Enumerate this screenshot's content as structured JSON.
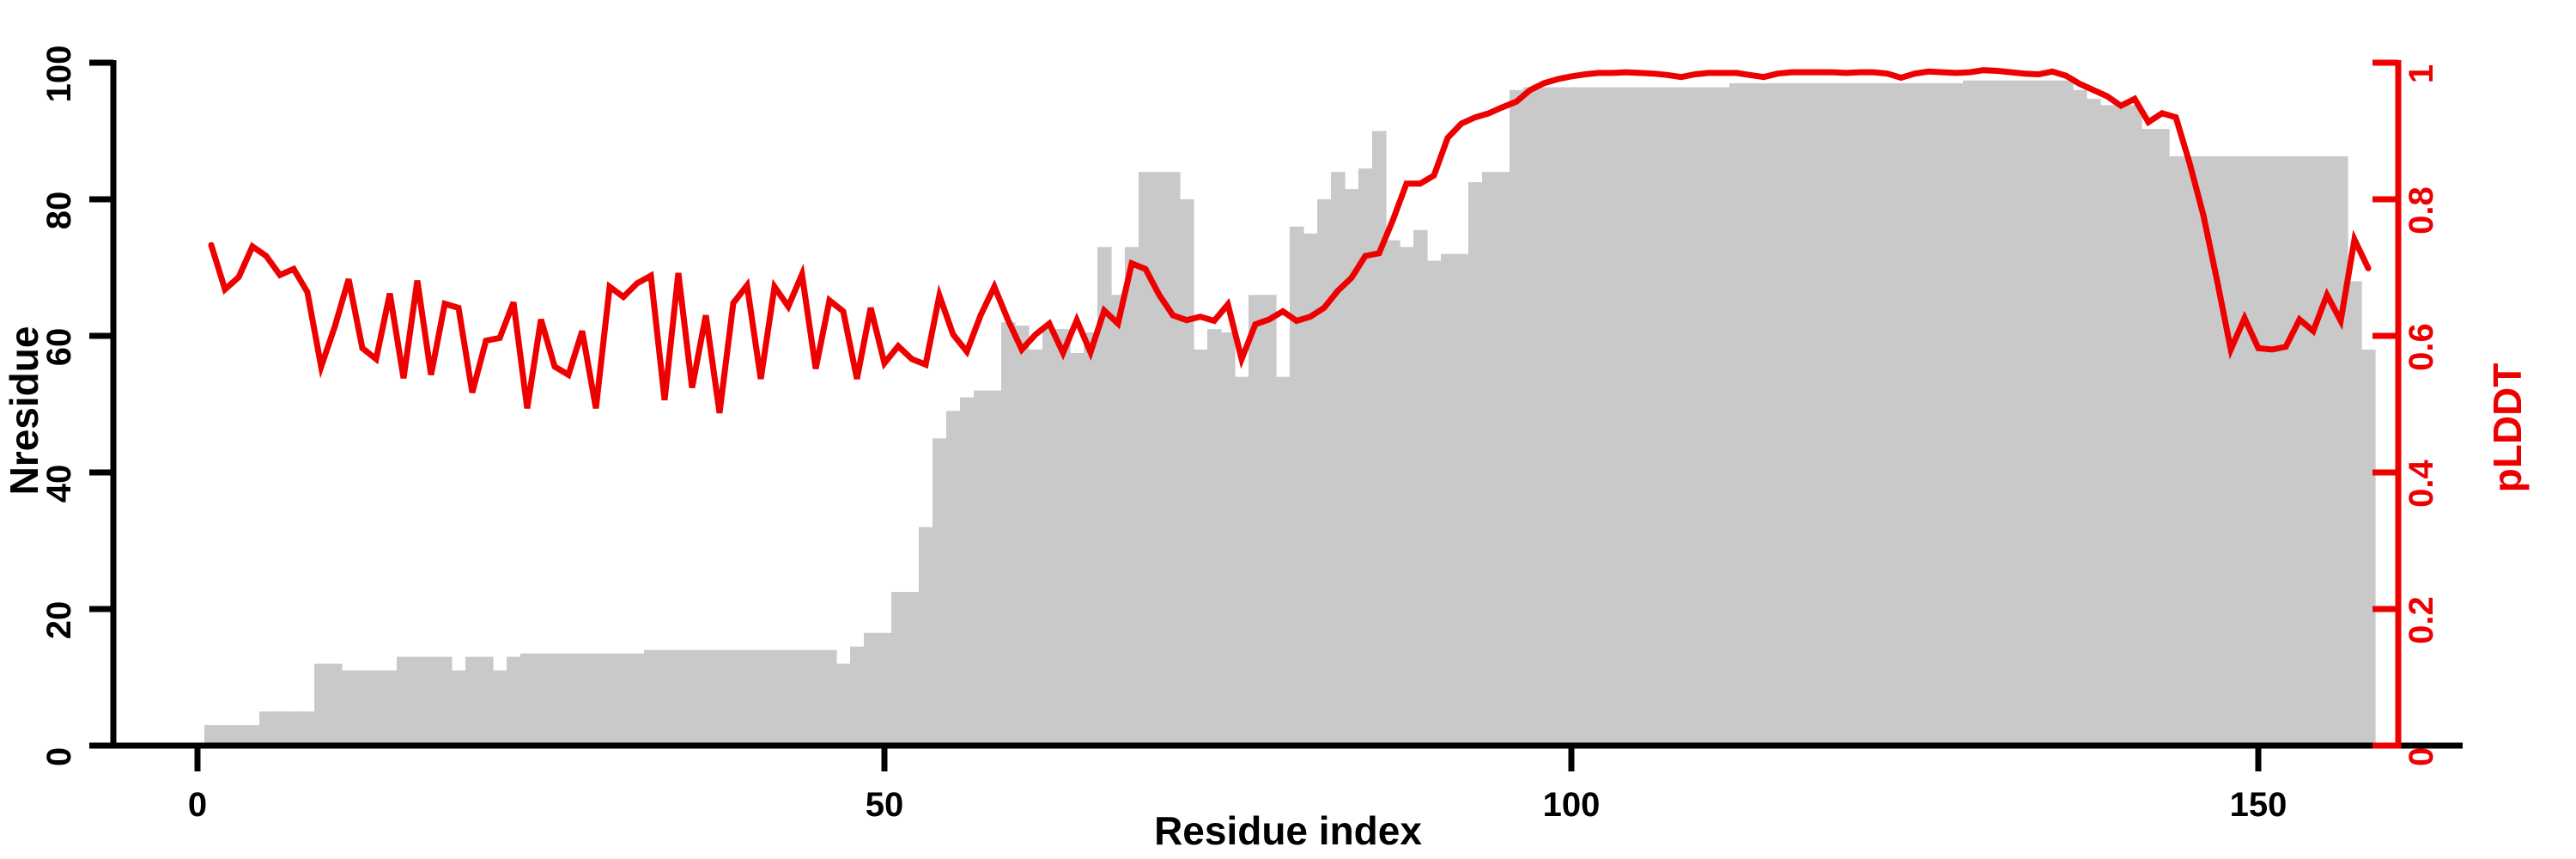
{
  "chart_data": {
    "type": "bar-line-dual-axis",
    "title": "",
    "xlabel": "Residue index",
    "ylabel_left": "Nresidue",
    "ylabel_right": "pLDDT",
    "x_ticks": [
      0,
      50,
      100,
      150
    ],
    "y_left_ticks": [
      0,
      20,
      40,
      60,
      80,
      100
    ],
    "y_right_ticks": [
      0,
      0.2,
      0.4,
      0.6,
      0.8,
      1
    ],
    "y_right_tick_labels": [
      "0",
      "0.2",
      "0.4",
      "0.6",
      "0.8",
      "1"
    ],
    "x_range": [
      0,
      160.6
    ],
    "y_left_range": [
      0,
      100
    ],
    "y_right_range": [
      0,
      1
    ],
    "grid": "off",
    "legend": "none",
    "colors": {
      "bars": "#c9c9c9",
      "line": "#ee0000",
      "left_axis": "#000000",
      "bottom_axis": "#000000",
      "right_axis": "#ee0000"
    },
    "series": [
      {
        "name": "Nresidue",
        "type": "bar",
        "axis": "left",
        "x_start": 1,
        "values": [
          3,
          3,
          3,
          3,
          5,
          5,
          5,
          5,
          12,
          12,
          11,
          11,
          11,
          11,
          13,
          13,
          13,
          13,
          11,
          13,
          13,
          11,
          13,
          13.5,
          13.5,
          13.5,
          13.5,
          13.5,
          13.5,
          13.5,
          13.5,
          13.5,
          14,
          14,
          14,
          14,
          14,
          14,
          14,
          14,
          14,
          14,
          14,
          14,
          14,
          14,
          12,
          14.5,
          16.5,
          16.5,
          22.5,
          22.5,
          32,
          45,
          49,
          51,
          52,
          52,
          62,
          61.5,
          58,
          61,
          61,
          57.5,
          60.5,
          73,
          66,
          73,
          84,
          84,
          84,
          80,
          58,
          61,
          60.5,
          54,
          66,
          66,
          54,
          76,
          75,
          80,
          84,
          81.5,
          84.5,
          90,
          74,
          73,
          75.5,
          71,
          72,
          72,
          82.5,
          84,
          84,
          96,
          96.4,
          96.4,
          96.4,
          96.4,
          96.4,
          96.4,
          96.4,
          96.4,
          96.4,
          96.4,
          96.4,
          96.4,
          96.4,
          96.4,
          96.4,
          97,
          97,
          97,
          97,
          97,
          97,
          97,
          97,
          97,
          97,
          97,
          97,
          97,
          97,
          97,
          97,
          97,
          97.4,
          97.4,
          97.4,
          97.4,
          97.4,
          97.4,
          97.4,
          97.4,
          96,
          94.7,
          93.8,
          93.8,
          93.8,
          90.3,
          90.3,
          86.3,
          86.3,
          86.3,
          86.3,
          86.3,
          86.3,
          86.3,
          86.3,
          86.3,
          86.3,
          86.3,
          86.3,
          86.3,
          68,
          58
        ]
      },
      {
        "name": "pLDDT",
        "type": "line",
        "axis": "right",
        "x_start": 1,
        "values": [
          0.733,
          0.668,
          0.686,
          0.731,
          0.717,
          0.689,
          0.698,
          0.664,
          0.555,
          0.614,
          0.683,
          0.582,
          0.566,
          0.662,
          0.538,
          0.681,
          0.543,
          0.647,
          0.641,
          0.517,
          0.593,
          0.597,
          0.649,
          0.494,
          0.624,
          0.555,
          0.543,
          0.607,
          0.494,
          0.672,
          0.657,
          0.677,
          0.688,
          0.506,
          0.692,
          0.524,
          0.63,
          0.487,
          0.648,
          0.674,
          0.537,
          0.672,
          0.643,
          0.69,
          0.552,
          0.652,
          0.636,
          0.537,
          0.641,
          0.56,
          0.585,
          0.566,
          0.558,
          0.659,
          0.602,
          0.577,
          0.63,
          0.672,
          0.623,
          0.58,
          0.602,
          0.618,
          0.575,
          0.623,
          0.576,
          0.637,
          0.618,
          0.706,
          0.698,
          0.66,
          0.63,
          0.623,
          0.628,
          0.622,
          0.646,
          0.566,
          0.617,
          0.624,
          0.636,
          0.622,
          0.628,
          0.641,
          0.666,
          0.685,
          0.717,
          0.721,
          0.769,
          0.823,
          0.823,
          0.835,
          0.89,
          0.911,
          0.92,
          0.926,
          0.935,
          0.943,
          0.96,
          0.97,
          0.976,
          0.98,
          0.983,
          0.985,
          0.985,
          0.986,
          0.985,
          0.984,
          0.982,
          0.979,
          0.983,
          0.985,
          0.985,
          0.985,
          0.982,
          0.979,
          0.984,
          0.986,
          0.986,
          0.986,
          0.986,
          0.985,
          0.986,
          0.986,
          0.984,
          0.978,
          0.984,
          0.987,
          0.986,
          0.985,
          0.986,
          0.989,
          0.988,
          0.986,
          0.984,
          0.983,
          0.987,
          0.981,
          0.969,
          0.96,
          0.951,
          0.937,
          0.947,
          0.913,
          0.926,
          0.92,
          0.853,
          0.777,
          0.681,
          0.58,
          0.626,
          0.582,
          0.58,
          0.584,
          0.624,
          0.607,
          0.66,
          0.622,
          0.741,
          0.699
        ]
      }
    ]
  }
}
